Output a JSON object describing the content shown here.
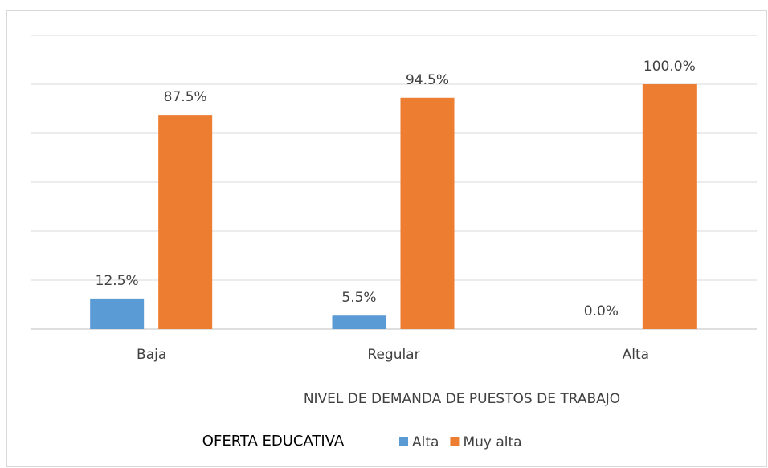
{
  "chart_data": {
    "type": "bar",
    "categories": [
      "Baja",
      "Regular",
      "Alta"
    ],
    "series": [
      {
        "name": "Alta",
        "color": "#5b9bd5",
        "values": [
          12.5,
          5.5,
          0.0
        ],
        "value_labels": [
          "12.5%",
          "5.5%",
          "0.0%"
        ]
      },
      {
        "name": "Muy alta",
        "color": "#ed7d31",
        "values": [
          87.5,
          94.5,
          100.0
        ],
        "value_labels": [
          "87.5%",
          "94.5%",
          "100.0%"
        ]
      }
    ],
    "xlabel": "NIVEL DE DEMANDA DE PUESTOS DE TRABAJO",
    "legend_title": "OFERTA EDUCATIVA",
    "ylim": [
      0,
      120
    ],
    "yticks": [
      0,
      20,
      40,
      60,
      80,
      100,
      120
    ],
    "grid": true
  }
}
